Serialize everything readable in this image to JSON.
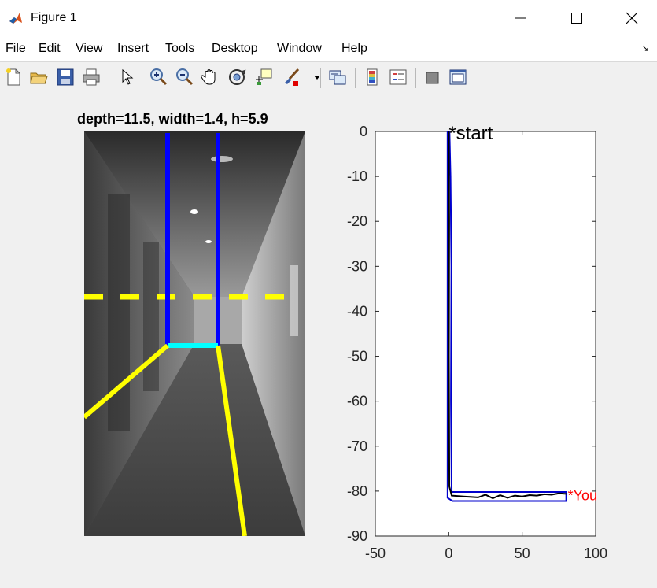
{
  "window": {
    "title": "Figure 1"
  },
  "menu": [
    "File",
    "Edit",
    "View",
    "Insert",
    "Tools",
    "Desktop",
    "Window",
    "Help"
  ],
  "toolbar": {
    "buttons": [
      "new-figure-icon",
      "open-file-icon",
      "save-icon",
      "print-icon",
      "select-pointer-icon",
      "zoom-in-icon",
      "zoom-out-icon",
      "pan-hand-icon",
      "rotate-3d-icon",
      "data-cursor-icon",
      "brush-icon",
      "link-plot-icon",
      "insert-colorbar-icon",
      "insert-legend-icon",
      "hide-plot-tools-icon",
      "show-plot-tools-icon"
    ]
  },
  "left_axes": {
    "title": "depth=11.5, width=1.4, h=5.9"
  },
  "chart_data": {
    "type": "line",
    "xlim": [
      -50,
      100
    ],
    "ylim": [
      -90,
      0
    ],
    "xticks": [
      "-50",
      "0",
      "50",
      "100"
    ],
    "yticks": [
      "0",
      "-10",
      "-20",
      "-30",
      "-40",
      "-50",
      "-60",
      "-70",
      "-80",
      "-90"
    ],
    "grid": false,
    "series": [
      {
        "color": "#0000cc",
        "x": [
          -0.8,
          -0.8,
          2.5,
          80,
          80,
          2.0,
          1.5,
          1.8,
          1.2,
          0.5
        ],
        "y": [
          0,
          -81.5,
          -82.2,
          -82.2,
          -80.2,
          -80.2,
          -60,
          -30,
          -10,
          0
        ]
      },
      {
        "color": "#000000",
        "x": [
          0,
          0.3,
          0.1,
          0.4,
          2,
          10,
          20,
          25,
          30,
          35,
          40,
          45,
          50,
          55,
          60,
          65,
          70,
          75,
          80
        ],
        "y": [
          0,
          -20,
          -50,
          -79,
          -81,
          -81.2,
          -81.4,
          -80.8,
          -81.6,
          -80.9,
          -81.5,
          -81.0,
          -81.2,
          -80.9,
          -81.0,
          -80.7,
          -80.8,
          -80.5,
          -80.6
        ]
      }
    ],
    "annotations": [
      {
        "text": "*start",
        "x": 0,
        "y": 0,
        "color": "#000000"
      },
      {
        "text": "*You",
        "x": 80,
        "y": -81,
        "color": "#ff0000"
      }
    ]
  },
  "colors": {
    "lane_blue": "#0000ff",
    "floor_cyan": "#00ffff",
    "guide_yellow": "#ffff00"
  }
}
